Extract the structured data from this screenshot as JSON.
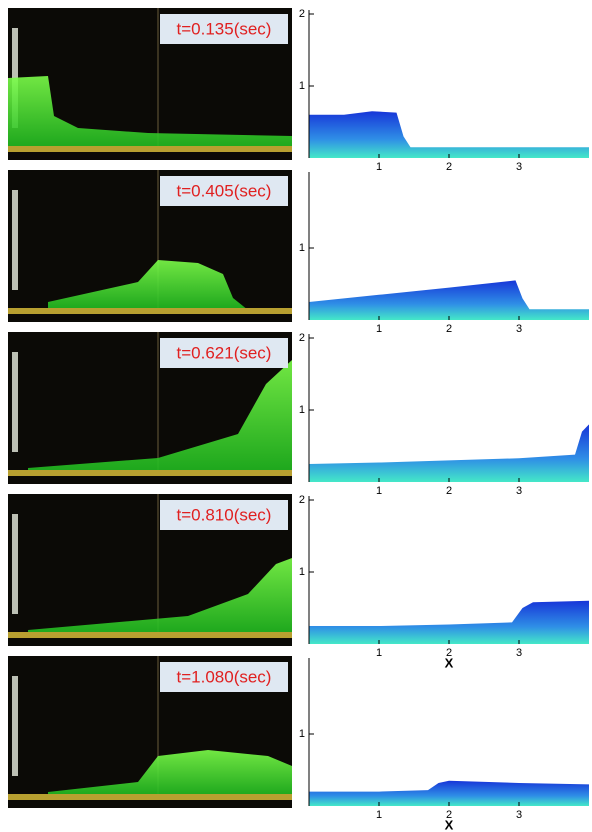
{
  "panels": [
    {
      "time_label": "t=0.135(sec)",
      "xlim": [
        0,
        4
      ],
      "ylim": [
        0,
        2.05
      ],
      "xticks": [
        1,
        2,
        3
      ],
      "yticks": [
        1,
        2
      ],
      "surface": {
        "x": [
          0,
          0.5,
          0.9,
          1.25,
          1.35,
          1.45,
          4
        ],
        "y": [
          0.6,
          0.6,
          0.65,
          0.63,
          0.3,
          0.15,
          0.15
        ]
      }
    },
    {
      "time_label": "t=0.405(sec)",
      "xlim": [
        0,
        4
      ],
      "ylim": [
        0,
        2.05
      ],
      "xticks": [
        1,
        2,
        3
      ],
      "yticks": [
        1
      ],
      "surface": {
        "x": [
          0,
          1,
          2,
          2.95,
          3.05,
          3.15,
          4
        ],
        "y": [
          0.25,
          0.35,
          0.45,
          0.55,
          0.3,
          0.15,
          0.15
        ]
      }
    },
    {
      "time_label": "t=0.621(sec)",
      "xlim": [
        0,
        4
      ],
      "ylim": [
        0,
        2.05
      ],
      "xticks": [
        1,
        2,
        3
      ],
      "yticks": [
        1,
        2
      ],
      "surface": {
        "x": [
          0,
          1,
          2,
          3,
          3.8,
          3.9,
          4
        ],
        "y": [
          0.25,
          0.27,
          0.3,
          0.33,
          0.38,
          0.7,
          0.8
        ]
      }
    },
    {
      "time_label": "t=0.810(sec)",
      "xlim": [
        0,
        4
      ],
      "ylim": [
        0,
        2.05
      ],
      "xticks": [
        1,
        2,
        3
      ],
      "yticks": [
        1,
        2
      ],
      "x_label": "X",
      "surface": {
        "x": [
          0,
          1,
          2,
          2.9,
          3.05,
          3.2,
          4
        ],
        "y": [
          0.25,
          0.25,
          0.27,
          0.3,
          0.5,
          0.58,
          0.6
        ]
      }
    },
    {
      "time_label": "t=1.080(sec)",
      "xlim": [
        0,
        4
      ],
      "ylim": [
        0,
        2.05
      ],
      "xticks": [
        1,
        2,
        3
      ],
      "yticks": [
        1
      ],
      "x_label": "X",
      "surface": {
        "x": [
          0,
          1,
          1.7,
          1.85,
          2,
          3,
          4
        ],
        "y": [
          0.2,
          0.2,
          0.22,
          0.32,
          0.35,
          0.32,
          0.3
        ]
      }
    }
  ]
}
